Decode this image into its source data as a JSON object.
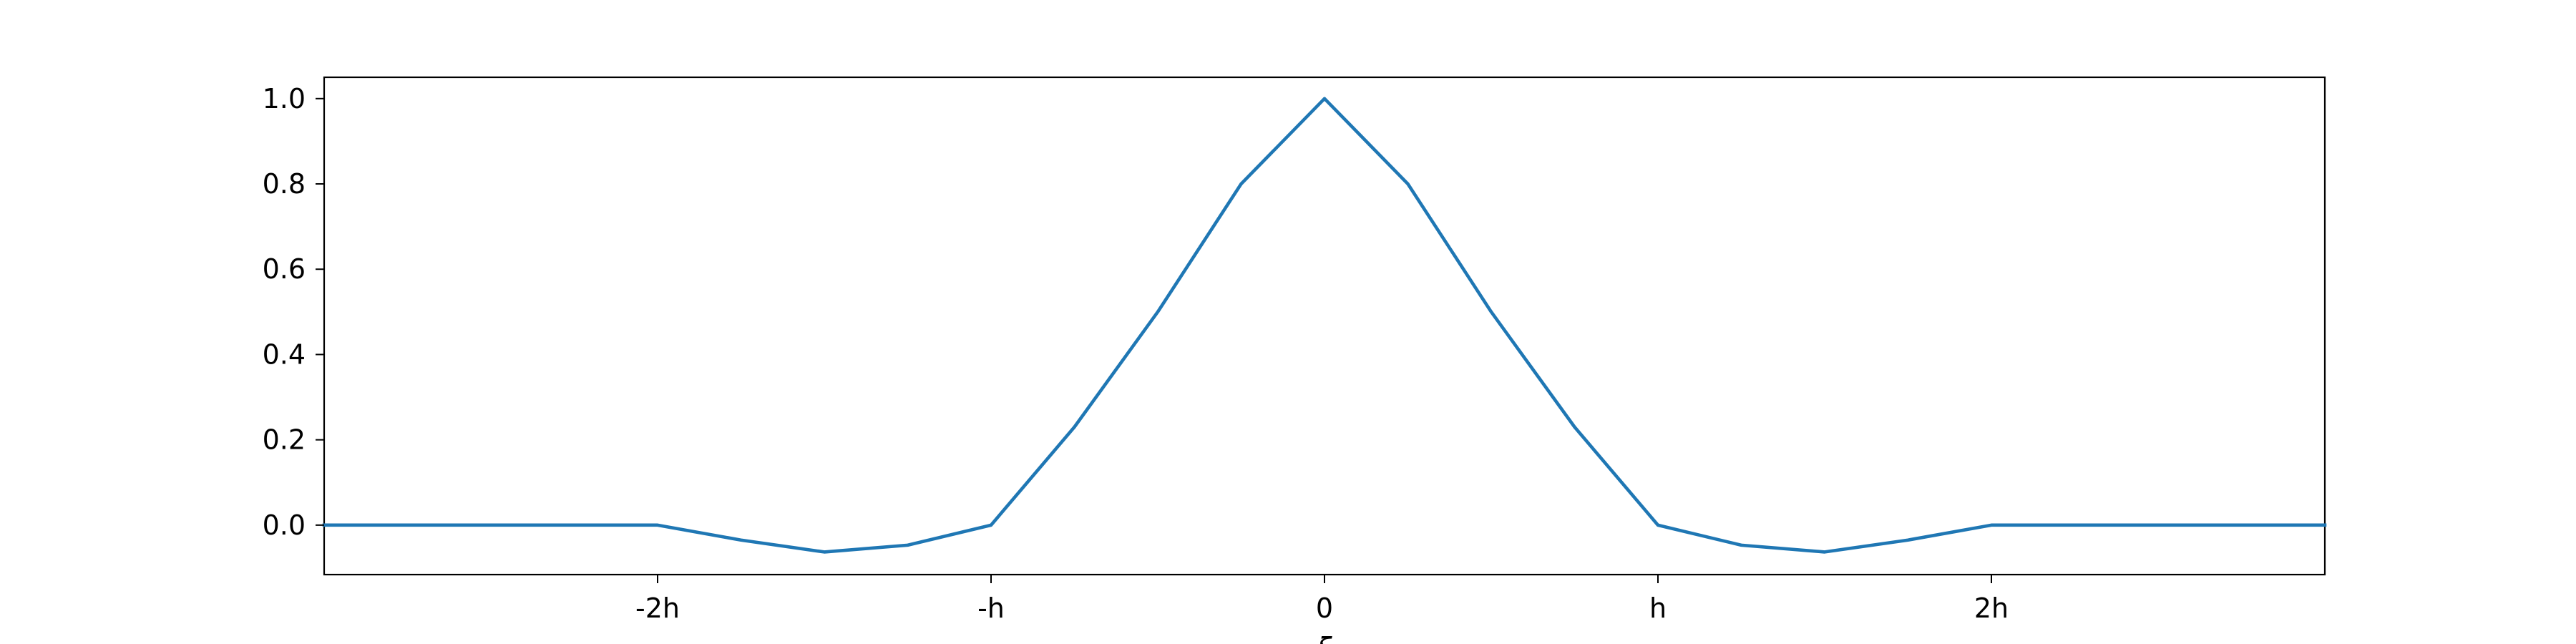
{
  "chart_data": {
    "type": "line",
    "title": "",
    "xlabel": "ξ",
    "ylabel": "",
    "xlim": [
      -3.0,
      3.0
    ],
    "ylim": [
      -0.116,
      1.05
    ],
    "x_ticks": [
      {
        "value": -2,
        "label": "-2h"
      },
      {
        "value": -1,
        "label": "-h"
      },
      {
        "value": 0,
        "label": "0"
      },
      {
        "value": 1,
        "label": "h"
      },
      {
        "value": 2,
        "label": "2h"
      }
    ],
    "y_ticks": [
      {
        "value": 0.0,
        "label": "0.0"
      },
      {
        "value": 0.2,
        "label": "0.2"
      },
      {
        "value": 0.4,
        "label": "0.4"
      },
      {
        "value": 0.6,
        "label": "0.6"
      },
      {
        "value": 0.8,
        "label": "0.8"
      },
      {
        "value": 1.0,
        "label": "1.0"
      }
    ],
    "grid": false,
    "series": [
      {
        "color": "#1f77b4",
        "x": [
          -3.0,
          -2.0,
          -1.75,
          -1.5,
          -1.25,
          -1.0,
          -0.75,
          -0.5,
          -0.25,
          0.0,
          0.25,
          0.5,
          0.75,
          1.0,
          1.25,
          1.5,
          1.75,
          2.0,
          3.0
        ],
        "y": [
          0.0,
          0.0,
          -0.035,
          -0.063,
          -0.047,
          0.0,
          0.23,
          0.5,
          0.8,
          1.0,
          0.8,
          0.5,
          0.23,
          0.0,
          -0.047,
          -0.063,
          -0.035,
          0.0,
          0.0
        ]
      }
    ]
  }
}
